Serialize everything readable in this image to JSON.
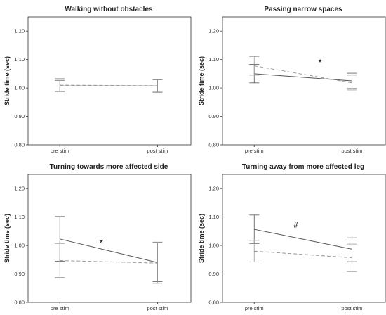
{
  "chart_data": [
    {
      "type": "line",
      "title": "Walking without obstacles",
      "ylabel": "Stride time (sec)",
      "categories": [
        "pre stim",
        "post stim"
      ],
      "yticks": [
        "0.80",
        "0.90",
        "1.00",
        "1.10",
        "1.20"
      ],
      "ylim": [
        0.8,
        1.25
      ],
      "grid": false,
      "series": [
        {
          "style": "solid",
          "values": [
            1.007,
            1.007
          ],
          "lower": [
            0.988,
            0.985
          ],
          "upper": [
            1.027,
            1.029
          ]
        },
        {
          "style": "dashed",
          "values": [
            1.01,
            1.008
          ],
          "lower": [
            0.987,
            0.986
          ],
          "upper": [
            1.033,
            1.03
          ]
        }
      ],
      "annotation": ""
    },
    {
      "type": "line",
      "title": "Passing narrow spaces",
      "ylabel": "Stride time (sec)",
      "categories": [
        "pre stim",
        "post stim"
      ],
      "yticks": [
        "0.80",
        "0.90",
        "1.00",
        "1.10",
        "1.20"
      ],
      "ylim": [
        0.8,
        1.25
      ],
      "grid": false,
      "series": [
        {
          "style": "solid",
          "values": [
            1.05,
            1.025
          ],
          "lower": [
            1.018,
            0.998
          ],
          "upper": [
            1.083,
            1.052
          ]
        },
        {
          "style": "dashed",
          "values": [
            1.078,
            1.018
          ],
          "lower": [
            1.045,
            0.993
          ],
          "upper": [
            1.11,
            1.045
          ]
        }
      ],
      "annotation": "*"
    },
    {
      "type": "line",
      "title": "Turning towards more affected side",
      "ylabel": "Stride time (sec)",
      "categories": [
        "pre stim",
        "post stim"
      ],
      "yticks": [
        "0.80",
        "0.90",
        "1.00",
        "1.10",
        "1.20"
      ],
      "ylim": [
        0.8,
        1.25
      ],
      "grid": false,
      "series": [
        {
          "style": "solid",
          "values": [
            1.023,
            0.94
          ],
          "lower": [
            0.945,
            0.873
          ],
          "upper": [
            1.102,
            1.01
          ]
        },
        {
          "style": "dashed",
          "values": [
            0.947,
            0.938
          ],
          "lower": [
            0.888,
            0.867
          ],
          "upper": [
            1.007,
            1.012
          ]
        }
      ],
      "annotation": "*"
    },
    {
      "type": "line",
      "title": "Turning away from more affected leg",
      "ylabel": "Stride time (sec)",
      "categories": [
        "pre stim",
        "post stim"
      ],
      "yticks": [
        "0.80",
        "0.90",
        "1.00",
        "1.10",
        "1.20"
      ],
      "ylim": [
        0.8,
        1.25
      ],
      "grid": false,
      "series": [
        {
          "style": "solid",
          "values": [
            1.057,
            0.987
          ],
          "lower": [
            1.007,
            0.943
          ],
          "upper": [
            1.107,
            1.027
          ]
        },
        {
          "style": "dashed",
          "values": [
            0.98,
            0.957
          ],
          "lower": [
            0.942,
            0.908
          ],
          "upper": [
            1.018,
            1.005
          ]
        }
      ],
      "annotation": "#"
    }
  ],
  "colors": {
    "solid_line": "#555555",
    "dashed_line": "#999999",
    "frame": "#333333"
  }
}
